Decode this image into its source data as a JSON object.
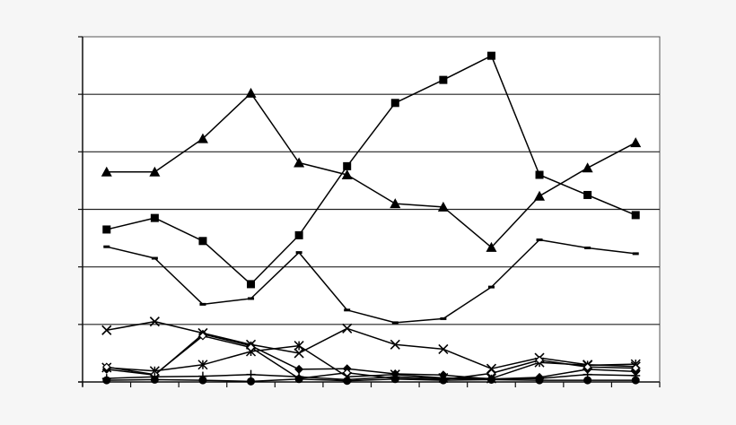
{
  "chart_data": {
    "type": "line",
    "title": "",
    "xlabel": "",
    "ylabel": "",
    "x": [
      1,
      2,
      3,
      4,
      5,
      6,
      7,
      8,
      9,
      10,
      11,
      12
    ],
    "xlim": [
      0,
      12
    ],
    "ylim": [
      0,
      60
    ],
    "grid": "horizontal",
    "legend": "none",
    "series": [
      {
        "marker": "triangle",
        "values": [
          36.5,
          36.5,
          42.3,
          50.2,
          38.1,
          36.0,
          31.0,
          30.4,
          23.4,
          32.3,
          37.2,
          41.6
        ]
      },
      {
        "marker": "square",
        "values": [
          26.5,
          28.5,
          24.5,
          17.0,
          25.5,
          37.5,
          48.5,
          52.5,
          56.7,
          36.0,
          32.5,
          29.0
        ]
      },
      {
        "marker": "dash",
        "values": [
          23.5,
          21.5,
          13.5,
          14.5,
          22.5,
          12.5,
          10.3,
          11.0,
          16.5,
          24.7,
          23.3,
          22.3
        ]
      },
      {
        "marker": "x",
        "values": [
          9.0,
          10.5,
          8.5,
          6.5,
          5.0,
          9.3,
          6.5,
          5.7,
          2.3,
          4.2,
          3.0,
          2.7
        ]
      },
      {
        "marker": "star",
        "values": [
          2.5,
          1.9,
          3.0,
          5.3,
          6.3,
          0.9,
          1.3,
          0.7,
          0.6,
          3.4,
          2.9,
          3.1
        ]
      },
      {
        "marker": "diamond",
        "values": [
          2.2,
          1.2,
          8.3,
          6.3,
          2.2,
          2.3,
          1.4,
          1.2,
          0.5,
          0.8,
          2.2,
          1.8
        ]
      },
      {
        "marker": "open-diamond",
        "values": [
          2.6,
          1.3,
          8.0,
          6.0,
          0.6,
          1.6,
          0.6,
          0.4,
          1.5,
          3.8,
          2.6,
          2.4
        ]
      },
      {
        "marker": "plus",
        "values": [
          0.6,
          0.9,
          1.0,
          1.3,
          0.9,
          0.4,
          0.9,
          0.6,
          0.5,
          0.6,
          1.3,
          1.1
        ]
      },
      {
        "marker": "circle",
        "values": [
          0.3,
          0.4,
          0.3,
          0.1,
          0.5,
          0.2,
          0.5,
          0.3,
          0.4,
          0.3,
          0.3,
          0.3
        ]
      }
    ]
  }
}
